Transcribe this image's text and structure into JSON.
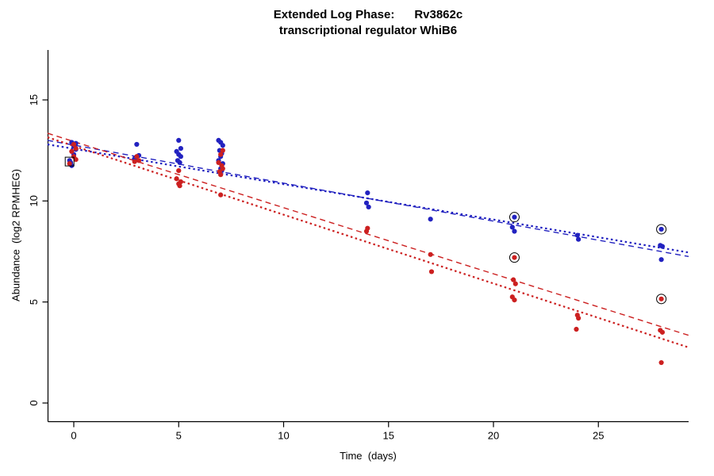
{
  "chart_data": {
    "type": "scatter",
    "title": "Extended Log Phase:      Rv3862c",
    "subtitle": "transcriptional regulator WhiB6",
    "xlabel": "Time  (days)",
    "ylabel": "Abundance  (log2 RPMHEG)",
    "xlim": [
      -1.25,
      29.3
    ],
    "ylim": [
      -0.85,
      17.5
    ],
    "xticks": [
      0,
      5,
      10,
      15,
      20,
      25
    ],
    "yticks": [
      0,
      5,
      10,
      15
    ],
    "grid": false,
    "legend": "none",
    "colors": {
      "blue": "#2222c0",
      "red": "#cc2020",
      "axis": "#000000",
      "marker_outline": "#000000"
    },
    "series": [
      {
        "name": "blue",
        "color": "#2222c0",
        "points": [
          [
            -0.1,
            12.9
          ],
          [
            0.1,
            12.85
          ],
          [
            0,
            12.7
          ],
          [
            0.1,
            12.55
          ],
          [
            0,
            12.3
          ],
          [
            -0.2,
            12.0
          ],
          [
            -0.15,
            11.9
          ],
          [
            -0.1,
            11.75
          ],
          [
            3,
            12.8
          ],
          [
            3.1,
            12.25
          ],
          [
            2.9,
            12.1
          ],
          [
            5,
            13.0
          ],
          [
            5.1,
            12.6
          ],
          [
            4.9,
            12.45
          ],
          [
            5,
            12.3
          ],
          [
            5.1,
            12.2
          ],
          [
            4.95,
            12.0
          ],
          [
            5.05,
            11.9
          ],
          [
            6.9,
            13.0
          ],
          [
            7,
            12.9
          ],
          [
            7.1,
            12.75
          ],
          [
            6.95,
            12.5
          ],
          [
            7.05,
            12.35
          ],
          [
            7,
            12.2
          ],
          [
            6.9,
            12.0
          ],
          [
            7.1,
            11.85
          ],
          [
            7,
            11.6
          ],
          [
            7.05,
            11.5
          ],
          [
            14,
            10.4
          ],
          [
            13.95,
            9.9
          ],
          [
            14.05,
            9.7
          ],
          [
            17,
            9.1
          ],
          [
            21,
            9.2
          ],
          [
            20.9,
            8.7
          ],
          [
            21,
            8.5
          ],
          [
            24,
            8.3
          ],
          [
            24.05,
            8.1
          ],
          [
            28,
            8.6
          ],
          [
            27.95,
            7.8
          ],
          [
            28.05,
            7.75
          ],
          [
            28,
            7.1
          ]
        ]
      },
      {
        "name": "red",
        "color": "#cc2020",
        "points": [
          [
            0,
            12.8
          ],
          [
            0.1,
            12.6
          ],
          [
            -0.1,
            12.45
          ],
          [
            0,
            12.2
          ],
          [
            0.1,
            12.05
          ],
          [
            -0.2,
            11.85
          ],
          [
            3,
            12.2
          ],
          [
            3.1,
            12.0
          ],
          [
            2.9,
            11.95
          ],
          [
            5,
            11.5
          ],
          [
            4.9,
            11.1
          ],
          [
            5.1,
            10.95
          ],
          [
            5,
            10.85
          ],
          [
            5.05,
            10.75
          ],
          [
            7.1,
            12.5
          ],
          [
            7,
            12.3
          ],
          [
            6.9,
            11.9
          ],
          [
            7.05,
            11.75
          ],
          [
            7.1,
            11.6
          ],
          [
            6.95,
            11.45
          ],
          [
            7,
            11.3
          ],
          [
            7,
            10.3
          ],
          [
            14,
            8.65
          ],
          [
            13.95,
            8.5
          ],
          [
            17,
            7.35
          ],
          [
            17.05,
            6.5
          ],
          [
            21,
            7.2
          ],
          [
            20.95,
            6.1
          ],
          [
            21.05,
            5.9
          ],
          [
            20.9,
            5.25
          ],
          [
            21,
            5.1
          ],
          [
            24,
            4.35
          ],
          [
            24.05,
            4.2
          ],
          [
            23.95,
            3.65
          ],
          [
            28,
            5.15
          ],
          [
            27.95,
            3.6
          ],
          [
            28.05,
            3.5
          ],
          [
            28,
            2.0
          ]
        ]
      }
    ],
    "outlier_markers": [
      {
        "x": -0.2,
        "y": 11.95,
        "shape": "square"
      },
      {
        "x": 21,
        "y": 9.2,
        "shape": "circle"
      },
      {
        "x": 21,
        "y": 7.2,
        "shape": "circle"
      },
      {
        "x": 28,
        "y": 8.6,
        "shape": "circle"
      },
      {
        "x": 28,
        "y": 5.15,
        "shape": "circle"
      }
    ],
    "trend_lines": [
      {
        "series": "blue",
        "x1": -1.25,
        "y1": 13.0,
        "x2": 29.3,
        "y2": 7.25,
        "style": "dashed",
        "width": 1.4
      },
      {
        "series": "blue",
        "x1": -1.25,
        "y1": 12.8,
        "x2": 29.3,
        "y2": 7.45,
        "style": "dotted",
        "width": 2.2
      },
      {
        "series": "red",
        "x1": -1.25,
        "y1": 13.35,
        "x2": 29.3,
        "y2": 3.35,
        "style": "dashed",
        "width": 1.4
      },
      {
        "series": "red",
        "x1": -1.25,
        "y1": 13.15,
        "x2": 29.3,
        "y2": 2.75,
        "style": "dotted",
        "width": 2.2
      }
    ]
  }
}
